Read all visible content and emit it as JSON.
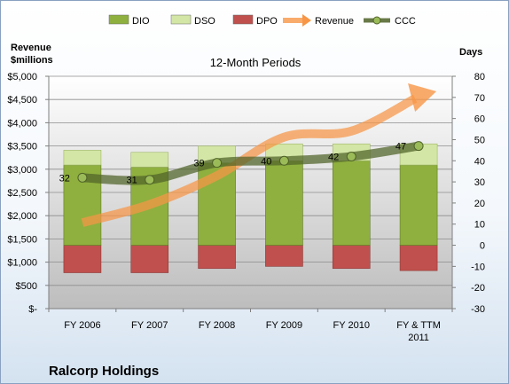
{
  "company": "Ralcorp Holdings",
  "chart_data": {
    "type": "bar",
    "title": "12-Month Periods",
    "ylabel_left": "Revenue\n$millions",
    "ylabel_right": "Days",
    "categories": [
      "FY 2006",
      "FY 2007",
      "FY 2008",
      "FY 2009",
      "FY 2010",
      "FY & TTM 2011"
    ],
    "left_axis": {
      "ylim": [
        0,
        5000
      ],
      "ticks": [
        0,
        500,
        1000,
        1500,
        2000,
        2500,
        3000,
        3500,
        4000,
        4500,
        5000
      ],
      "tick_labels": [
        "$-",
        "$500",
        "$1,000",
        "$1,500",
        "$2,000",
        "$2,500",
        "$3,000",
        "$3,500",
        "$4,000",
        "$4,500",
        "$5,000"
      ]
    },
    "right_axis": {
      "ylim": [
        -30,
        80
      ],
      "ticks": [
        -30,
        -20,
        -10,
        0,
        10,
        20,
        30,
        40,
        50,
        60,
        70,
        80
      ],
      "tick_labels": [
        "-30",
        "-20",
        "-10",
        "0",
        "10",
        "20",
        "30",
        "40",
        "50",
        "60",
        "70",
        "80"
      ]
    },
    "series": [
      {
        "name": "DIO",
        "type": "bar",
        "axis": "right",
        "color": "#8fb03e",
        "values": [
          38,
          37,
          39,
          40,
          40,
          38
        ]
      },
      {
        "name": "DSO",
        "type": "bar",
        "axis": "right",
        "color": "#d4e6a5",
        "values": [
          7,
          7,
          8,
          8,
          8,
          10
        ]
      },
      {
        "name": "DPO",
        "type": "bar",
        "axis": "right",
        "color": "#c0504d",
        "values": [
          -13,
          -13,
          -11,
          -10,
          -11,
          -12
        ]
      },
      {
        "name": "Revenue",
        "type": "line",
        "axis": "left",
        "color": "#f79646",
        "values": [
          1850,
          2240,
          2860,
          3690,
          3820,
          4560
        ]
      },
      {
        "name": "CCC",
        "type": "line",
        "axis": "right",
        "color": "#4f6228",
        "values": [
          32,
          31,
          39,
          40,
          42,
          47
        ],
        "labels": [
          "32",
          "31",
          "39",
          "40",
          "42",
          "47"
        ]
      }
    ],
    "legend_position": "top",
    "grid": true
  }
}
